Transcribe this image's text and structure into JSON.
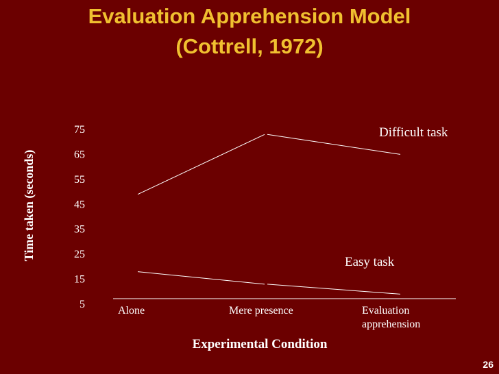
{
  "slide": {
    "title_line1": "Evaluation Apprehension Model",
    "title_line2": "(Cottrell, 1972)",
    "page_number": "26",
    "colors": {
      "background": "#6b0000",
      "title": "#f0c030",
      "text": "#ffffff",
      "lines": "#ffffff"
    }
  },
  "chart_data": {
    "type": "line",
    "categories": [
      "Alone",
      "Mere presence",
      "Evaluation apprehension"
    ],
    "xlabel": "Experimental Condition",
    "ylabel": "Time taken (seconds)",
    "yticks": [
      5,
      15,
      25,
      35,
      45,
      55,
      65,
      75
    ],
    "ylim": [
      5,
      75
    ],
    "grid": false,
    "series": [
      {
        "name": "Difficult task",
        "values": [
          49,
          73,
          65
        ]
      },
      {
        "name": "Easy task",
        "values": [
          18,
          13,
          9
        ]
      }
    ]
  }
}
